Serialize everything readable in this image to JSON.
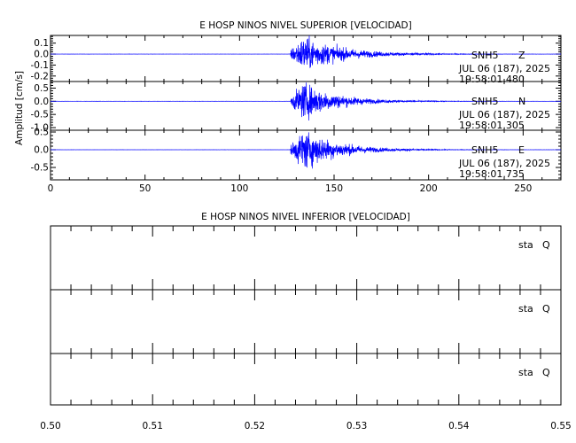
{
  "chart_data": [
    {
      "type": "line",
      "title": "E HOSP NINOS NIVEL SUPERIOR [VELOCIDAD]",
      "xlabel": "",
      "ylabel": "Amplitud [cm/s]",
      "xlim": [
        0,
        270
      ],
      "xticks": [
        "0",
        "50",
        "100",
        "150",
        "200",
        "250"
      ],
      "traces": [
        {
          "station": "SNH5",
          "component": "Z",
          "date": "JUL 06 (187), 2025",
          "time": "19:58:01.480",
          "ylim": [
            -0.25,
            0.17
          ],
          "yticks": [
            "0.1",
            "0.0",
            "-0.1",
            "-0.2"
          ],
          "envelope": {
            "onset": 127,
            "peak_time": 134,
            "peak_amplitude": 0.14,
            "decay_end": 215
          }
        },
        {
          "station": "SNH5",
          "component": "N",
          "date": "JUL 06 (187), 2025",
          "time": "19:58:01.305",
          "ylim": [
            -1.1,
            0.75
          ],
          "yticks": [
            "0.5",
            "0.0",
            "-0.5",
            "-1.0"
          ],
          "envelope": {
            "onset": 127,
            "peak_time": 134,
            "peak_amplitude": 0.6,
            "decay_end": 205
          }
        },
        {
          "station": "SNH5",
          "component": "E",
          "date": "JUL 06 (187), 2025",
          "time": "19:58:01.735",
          "ylim": [
            -0.85,
            0.55
          ],
          "yticks": [
            "0.5",
            "0.0",
            "-0.5"
          ],
          "envelope": {
            "onset": 127,
            "peak_time": 134,
            "peak_amplitude": 0.5,
            "decay_end": 205
          }
        }
      ]
    },
    {
      "type": "line",
      "title": "E HOSP NINOS NIVEL INFERIOR [VELOCIDAD]",
      "xlabel": "",
      "ylabel": "",
      "xlim": [
        0.5,
        0.55
      ],
      "xticks": [
        "0.50",
        "0.51",
        "0.52",
        "0.53",
        "0.54",
        "0.55"
      ],
      "traces": [
        {
          "station": "sta",
          "component": "Q"
        },
        {
          "station": "sta",
          "component": "Q"
        },
        {
          "station": "sta",
          "component": "Q"
        }
      ]
    }
  ],
  "colors": {
    "trace": "#0000ff",
    "axes": "#000000",
    "background": "#ffffff"
  }
}
